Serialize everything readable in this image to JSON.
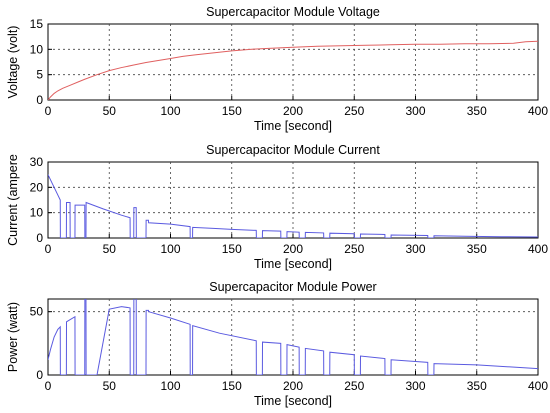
{
  "chart_data": [
    {
      "type": "line",
      "title": "Supercapacitor Module Voltage",
      "xlabel": "Time [second]",
      "ylabel": "Voltage (volt)",
      "xlim": [
        0,
        400
      ],
      "ylim": [
        0,
        15
      ],
      "xticks": [
        "0",
        "50",
        "100",
        "150",
        "200",
        "250",
        "300",
        "350",
        "400"
      ],
      "yticks": [
        "0",
        "5",
        "10",
        "15"
      ],
      "grid": true,
      "color": "#e06060",
      "series": [
        {
          "x": [
            0,
            2,
            5,
            8,
            12,
            18,
            25,
            30,
            40,
            50,
            60,
            70,
            80,
            90,
            100,
            110,
            120,
            135,
            150,
            165,
            180,
            200,
            220,
            240,
            260,
            280,
            300,
            320,
            340,
            360,
            380,
            390,
            400
          ],
          "y": [
            0,
            0.6,
            1.3,
            1.8,
            2.3,
            2.9,
            3.6,
            4.1,
            5.0,
            5.8,
            6.4,
            6.9,
            7.4,
            7.8,
            8.2,
            8.6,
            8.9,
            9.3,
            9.7,
            10.0,
            10.2,
            10.4,
            10.6,
            10.7,
            10.8,
            10.9,
            11.0,
            11.0,
            11.1,
            11.1,
            11.2,
            11.5,
            11.6
          ]
        }
      ]
    },
    {
      "type": "line",
      "title": "Supercapacitor Module Current",
      "xlabel": "Time [second]",
      "ylabel": "Current (ampere",
      "xlim": [
        0,
        400
      ],
      "ylim": [
        0,
        30
      ],
      "xticks": [
        "0",
        "50",
        "100",
        "150",
        "200",
        "250",
        "300",
        "350",
        "400"
      ],
      "yticks": [
        "0",
        "10",
        "20",
        "30"
      ],
      "grid": true,
      "color": "#5a5ae0",
      "series": [
        {
          "x": [
            0,
            1,
            4,
            8,
            10,
            10.1,
            15,
            15.1,
            18,
            18.1,
            22,
            22.1,
            30,
            30.1,
            31,
            31.1,
            45,
            60,
            67,
            67.1,
            70,
            70.1,
            72,
            72.1,
            80,
            80.1,
            82,
            82.1,
            100,
            116,
            116.1,
            118,
            118.1,
            135,
            150,
            170,
            170.1,
            175,
            175.1,
            190,
            190.1,
            195,
            195.1,
            205,
            205.1,
            210,
            210.1,
            225,
            225.1,
            230,
            230.1,
            250,
            250.1,
            255,
            255.1,
            275,
            275.1,
            280,
            280.1,
            310,
            310.1,
            315,
            315.1,
            340,
            370,
            400
          ],
          "y": [
            25,
            24,
            21,
            17,
            15,
            0,
            0,
            14,
            14,
            0,
            0,
            13,
            13,
            0,
            0,
            14,
            11.5,
            9,
            8,
            0,
            0,
            12,
            12,
            0,
            0,
            7,
            7,
            6,
            5.5,
            4.5,
            0,
            0,
            4.2,
            3.8,
            3.4,
            3.0,
            0,
            0,
            2.9,
            2.7,
            0,
            0,
            2.5,
            2.3,
            0,
            0,
            2.2,
            2.0,
            0,
            0,
            1.9,
            1.7,
            0,
            0,
            1.6,
            1.4,
            0,
            0,
            1.2,
            1.0,
            0,
            0,
            0.9,
            0.7,
            0.5,
            0.4
          ]
        }
      ]
    },
    {
      "type": "line",
      "title": "Supercapacitor Module Power",
      "xlabel": "Time [second]",
      "ylabel": "Power (watt)",
      "xlim": [
        0,
        400
      ],
      "ylim": [
        0,
        60
      ],
      "xticks": [
        "0",
        "50",
        "100",
        "150",
        "200",
        "250",
        "300",
        "350",
        "400"
      ],
      "yticks": [
        "0",
        "50"
      ],
      "grid": true,
      "color": "#5a5ae0",
      "series": [
        {
          "x": [
            0,
            2,
            5,
            8,
            10,
            10.1,
            15,
            15.1,
            22,
            22.1,
            30,
            30.1,
            31,
            31.1,
            40,
            50,
            60,
            67,
            67.1,
            70,
            70.1,
            72,
            72.1,
            80,
            80.1,
            82,
            82.1,
            100,
            116,
            116.1,
            118,
            118.1,
            140,
            170,
            170.1,
            175,
            175.1,
            190,
            190.1,
            195,
            195.1,
            205,
            205.1,
            210,
            210.1,
            225,
            225.1,
            230,
            230.1,
            250,
            250.1,
            255,
            255.1,
            275,
            275.1,
            280,
            280.1,
            310,
            310.1,
            315,
            315.1,
            350,
            400
          ],
          "y": [
            12,
            20,
            30,
            36,
            38,
            0,
            0,
            42,
            46,
            0,
            0,
            63,
            63,
            0,
            0,
            52,
            54,
            53,
            0,
            0,
            63,
            63,
            0,
            0,
            51,
            51,
            50,
            45,
            40,
            0,
            0,
            39,
            33,
            27,
            0,
            0,
            26,
            25,
            0,
            0,
            24,
            22,
            0,
            0,
            21,
            19,
            0,
            0,
            18,
            16,
            0,
            0,
            15,
            13,
            0,
            0,
            12,
            10,
            0,
            0,
            9,
            8,
            5
          ]
        }
      ]
    }
  ]
}
